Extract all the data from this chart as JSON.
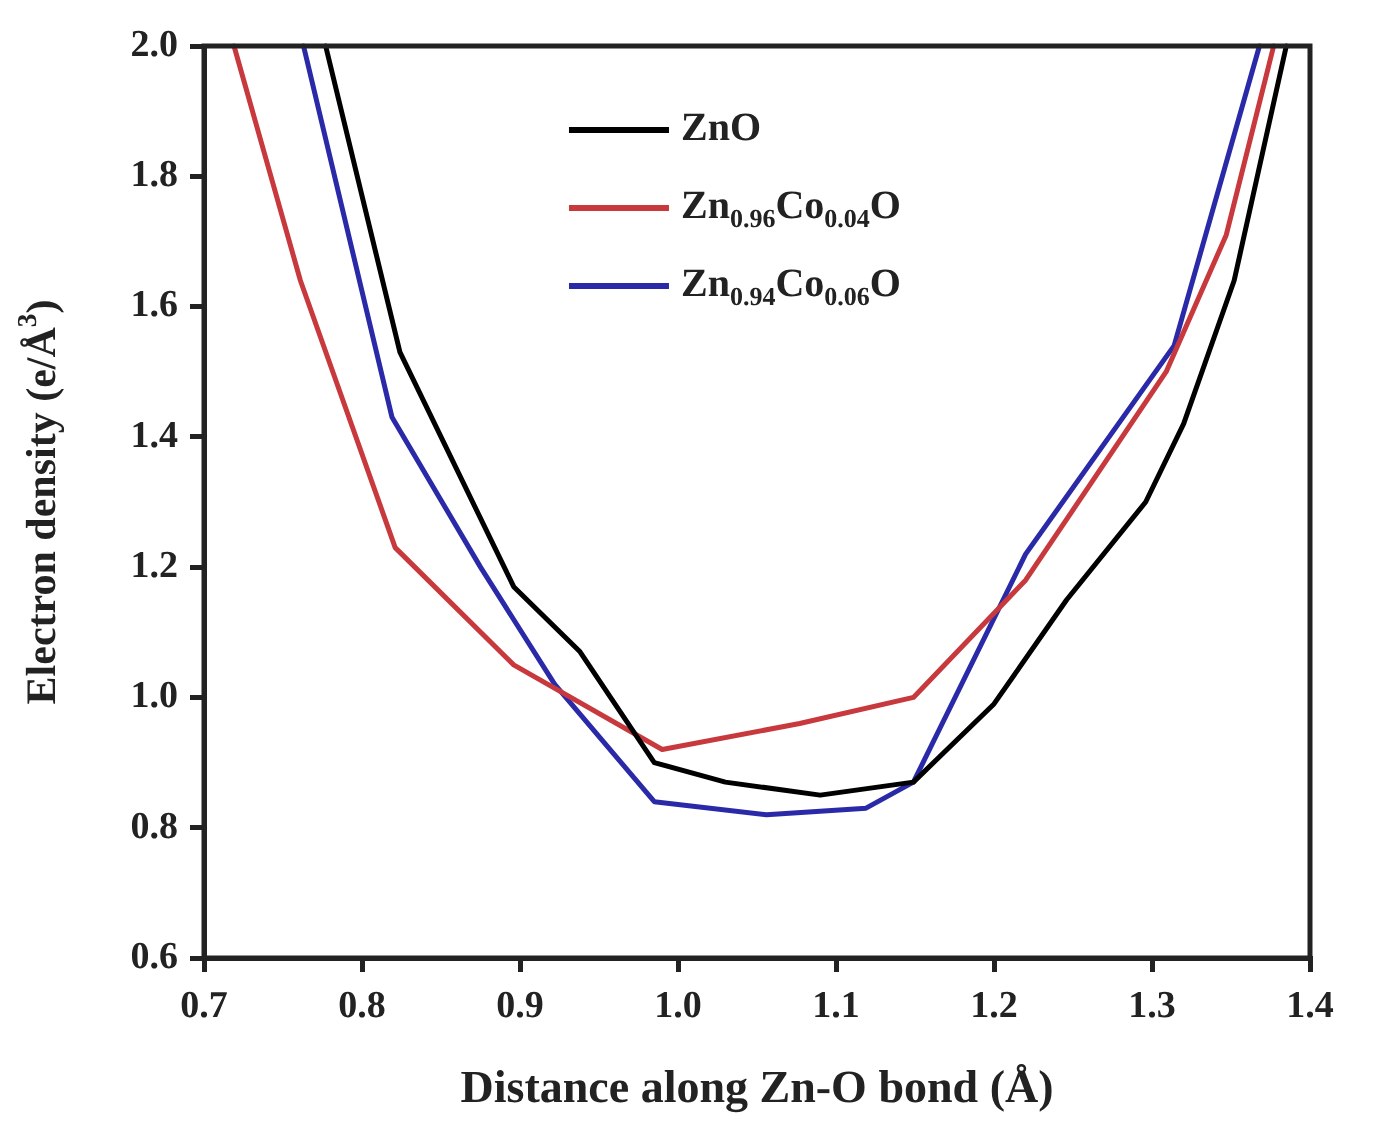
{
  "chart_data": {
    "type": "line",
    "xlabel": "Distance along Zn-O bond (Å)",
    "ylabel": "Electron density (e/Å$^{3}$)",
    "xlim": [
      0.7,
      1.4
    ],
    "ylim": [
      0.6,
      2.0
    ],
    "xticks": [
      {
        "value": 0.7,
        "label": "0.7"
      },
      {
        "value": 0.8,
        "label": "0.8"
      },
      {
        "value": 0.9,
        "label": "0.9"
      },
      {
        "value": 1.0,
        "label": "1.0"
      },
      {
        "value": 1.1,
        "label": "1.1"
      },
      {
        "value": 1.2,
        "label": "1.2"
      },
      {
        "value": 1.3,
        "label": "1.3"
      },
      {
        "value": 1.4,
        "label": "1.4"
      }
    ],
    "yticks": [
      {
        "value": 0.6,
        "label": "0.6"
      },
      {
        "value": 0.8,
        "label": "0.8"
      },
      {
        "value": 1.0,
        "label": "1.0"
      },
      {
        "value": 1.2,
        "label": "1.2"
      },
      {
        "value": 1.4,
        "label": "1.4"
      },
      {
        "value": 1.6,
        "label": "1.6"
      },
      {
        "value": 1.8,
        "label": "1.8"
      },
      {
        "value": 2.0,
        "label": "2.0"
      }
    ],
    "grid": false,
    "legend": "top",
    "marker": "none",
    "line_style": "solid",
    "series": [
      {
        "name": "ZnO",
        "color": "#000000",
        "x": [
          0.777,
          0.824,
          0.896,
          0.938,
          0.985,
          1.03,
          1.09,
          1.149,
          1.2,
          1.246,
          1.296,
          1.32,
          1.352,
          1.385
        ],
        "values": [
          2.0,
          1.53,
          1.17,
          1.07,
          0.9,
          0.87,
          0.85,
          0.87,
          0.99,
          1.15,
          1.3,
          1.42,
          1.64,
          2.0
        ]
      },
      {
        "name": "Zn$_{0.96}$Co$_{0.04}$O",
        "color": "#c8393d",
        "x": [
          0.719,
          0.761,
          0.821,
          0.896,
          0.99,
          1.077,
          1.149,
          1.22,
          1.309,
          1.347,
          1.377
        ],
        "values": [
          2.0,
          1.64,
          1.23,
          1.05,
          0.92,
          0.96,
          1.0,
          1.18,
          1.5,
          1.71,
          2.0
        ]
      },
      {
        "name": "Zn$_{0.94}$Co$_{0.06}$O",
        "color": "#2a2aa8",
        "x": [
          0.763,
          0.819,
          0.875,
          0.922,
          0.985,
          1.056,
          1.119,
          1.149,
          1.22,
          1.314,
          1.368
        ],
        "values": [
          2.0,
          1.43,
          1.2,
          1.02,
          0.84,
          0.82,
          0.83,
          0.87,
          1.22,
          1.54,
          2.0
        ]
      }
    ]
  }
}
